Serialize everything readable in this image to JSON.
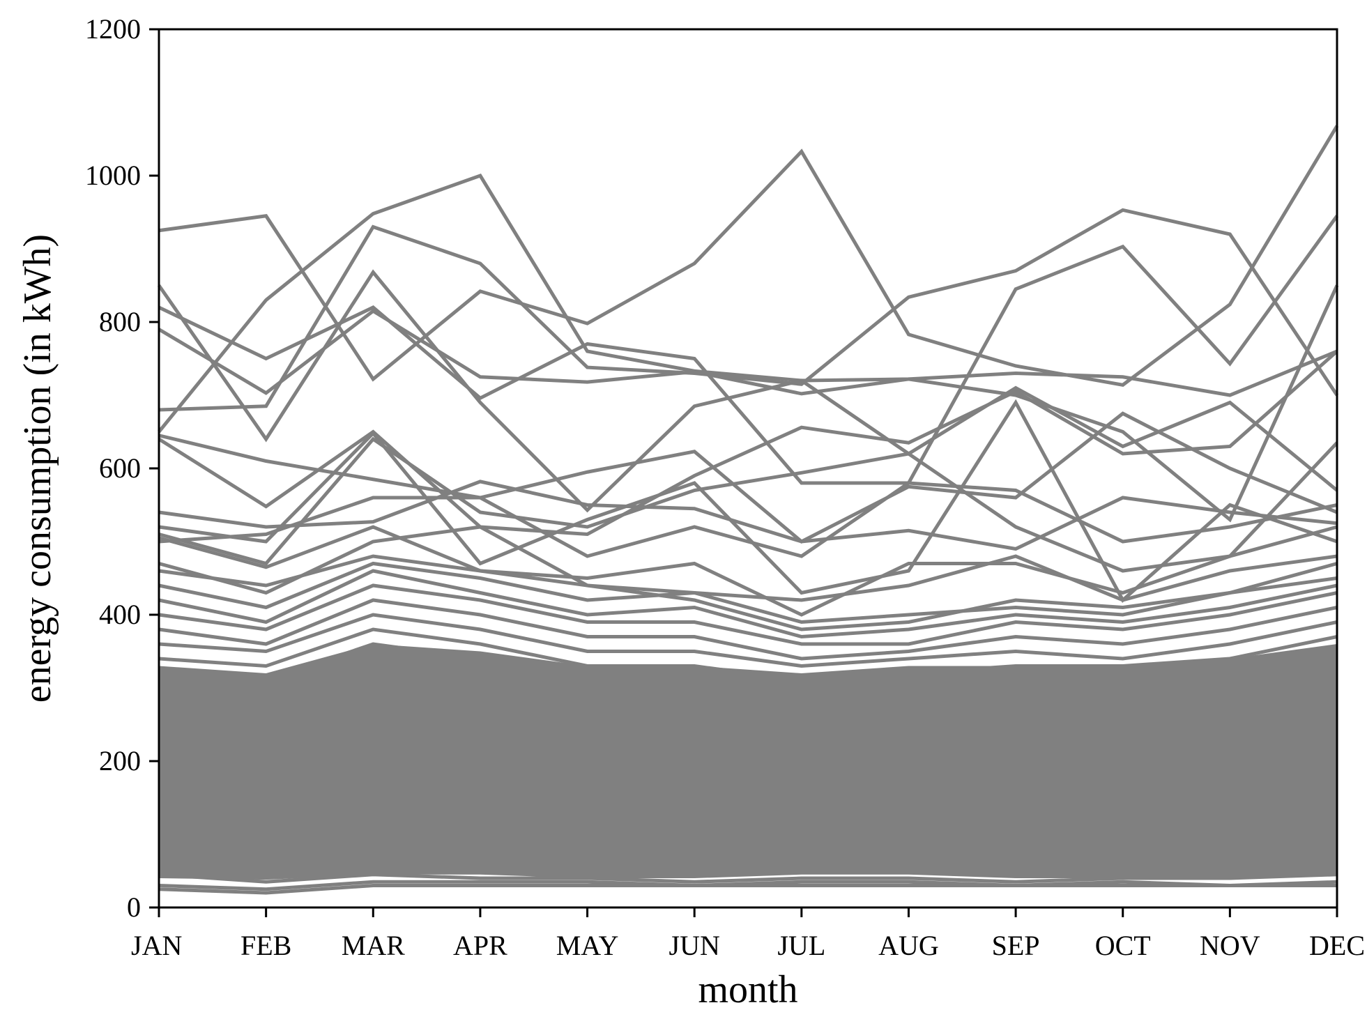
{
  "chart_data": {
    "type": "line",
    "title": "",
    "xlabel": "month",
    "ylabel": "energy consumption (in kWh)",
    "categories": [
      "JAN",
      "FEB",
      "MAR",
      "APR",
      "MAY",
      "JUN",
      "JUL",
      "AUG",
      "SEP",
      "OCT",
      "NOV",
      "DEC"
    ],
    "ylim": [
      0,
      1200
    ],
    "yticks": [
      0,
      200,
      400,
      600,
      800,
      1000,
      1200
    ],
    "grid": false,
    "legend": "none",
    "line_color": "#808080",
    "series": [
      {
        "values": [
          925,
          945,
          722,
          842,
          798,
          880,
          1033,
          783,
          740,
          714,
          824,
          1068
        ]
      },
      {
        "values": [
          650,
          830,
          948,
          1000,
          760,
          733,
          720,
          722,
          730,
          725,
          700,
          760
        ]
      },
      {
        "values": [
          680,
          685,
          930,
          880,
          738,
          730,
          715,
          834,
          870,
          953,
          920,
          700
        ]
      },
      {
        "values": [
          820,
          750,
          820,
          696,
          770,
          750,
          580,
          580,
          845,
          903,
          743,
          945
        ]
      },
      {
        "values": [
          850,
          640,
          868,
          690,
          543,
          685,
          720,
          620,
          710,
          630,
          690,
          570
        ]
      },
      {
        "values": [
          790,
          703,
          815,
          725,
          718,
          732,
          702,
          722,
          700,
          650,
          530,
          850
        ]
      },
      {
        "values": [
          645,
          610,
          585,
          560,
          595,
          623,
          500,
          575,
          560,
          675,
          600,
          540
        ]
      },
      {
        "values": [
          640,
          548,
          650,
          520,
          510,
          590,
          656,
          635,
          705,
          620,
          630,
          760
        ]
      },
      {
        "values": [
          540,
          520,
          527,
          582,
          550,
          545,
          500,
          515,
          490,
          560,
          540,
          525
        ]
      },
      {
        "values": [
          520,
          500,
          648,
          470,
          530,
          580,
          430,
          460,
          690,
          420,
          550,
          500
        ]
      },
      {
        "values": [
          510,
          470,
          640,
          540,
          520,
          570,
          594,
          620,
          520,
          460,
          480,
          635
        ]
      },
      {
        "values": [
          500,
          510,
          560,
          560,
          480,
          520,
          480,
          580,
          570,
          500,
          520,
          550
        ]
      },
      {
        "values": [
          505,
          465,
          520,
          460,
          450,
          470,
          400,
          470,
          470,
          430,
          480,
          520
        ]
      },
      {
        "values": [
          470,
          430,
          500,
          520,
          440,
          430,
          420,
          440,
          480,
          420,
          460,
          480
        ]
      },
      {
        "values": [
          460,
          440,
          480,
          460,
          440,
          420,
          380,
          390,
          420,
          410,
          430,
          470
        ]
      },
      {
        "values": [
          440,
          410,
          470,
          450,
          420,
          430,
          390,
          400,
          410,
          400,
          430,
          450
        ]
      },
      {
        "values": [
          420,
          390,
          460,
          430,
          400,
          410,
          370,
          380,
          400,
          390,
          410,
          440
        ]
      },
      {
        "values": [
          400,
          380,
          440,
          420,
          390,
          390,
          360,
          360,
          390,
          380,
          400,
          430
        ]
      },
      {
        "values": [
          380,
          360,
          420,
          400,
          370,
          370,
          340,
          350,
          370,
          360,
          380,
          410
        ]
      },
      {
        "values": [
          360,
          350,
          400,
          380,
          350,
          350,
          330,
          340,
          350,
          340,
          360,
          390
        ]
      },
      {
        "values": [
          340,
          330,
          380,
          360,
          330,
          330,
          310,
          320,
          330,
          330,
          340,
          370
        ]
      },
      {
        "values": [
          320,
          310,
          360,
          340,
          310,
          310,
          290,
          300,
          310,
          310,
          320,
          350
        ]
      },
      {
        "values": [
          300,
          290,
          340,
          320,
          290,
          290,
          270,
          280,
          290,
          290,
          300,
          330
        ]
      },
      {
        "values": [
          280,
          270,
          320,
          300,
          270,
          270,
          250,
          260,
          270,
          270,
          280,
          310
        ]
      },
      {
        "values": [
          260,
          250,
          300,
          280,
          250,
          250,
          230,
          240,
          250,
          250,
          260,
          290
        ]
      },
      {
        "values": [
          240,
          230,
          280,
          260,
          230,
          230,
          210,
          220,
          230,
          230,
          240,
          270
        ]
      },
      {
        "values": [
          220,
          210,
          260,
          240,
          210,
          210,
          190,
          200,
          210,
          210,
          220,
          250
        ]
      },
      {
        "values": [
          200,
          190,
          240,
          220,
          190,
          190,
          170,
          180,
          190,
          190,
          200,
          230
        ]
      },
      {
        "values": [
          180,
          170,
          220,
          200,
          170,
          170,
          150,
          160,
          170,
          170,
          180,
          210
        ]
      },
      {
        "values": [
          160,
          150,
          200,
          180,
          150,
          150,
          130,
          140,
          150,
          150,
          160,
          190
        ]
      },
      {
        "values": [
          140,
          130,
          180,
          160,
          130,
          130,
          110,
          120,
          130,
          130,
          140,
          170
        ]
      },
      {
        "values": [
          120,
          110,
          160,
          140,
          110,
          110,
          90,
          100,
          110,
          110,
          120,
          150
        ]
      },
      {
        "values": [
          100,
          90,
          140,
          120,
          90,
          90,
          75,
          85,
          90,
          90,
          100,
          130
        ]
      },
      {
        "values": [
          80,
          75,
          120,
          100,
          75,
          75,
          65,
          70,
          75,
          75,
          85,
          110
        ]
      },
      {
        "values": [
          60,
          55,
          80,
          70,
          55,
          55,
          50,
          55,
          55,
          55,
          60,
          80
        ]
      },
      {
        "values": [
          45,
          35,
          45,
          40,
          40,
          35,
          40,
          40,
          35,
          40,
          40,
          45
        ]
      },
      {
        "values": [
          30,
          25,
          35,
          35,
          35,
          30,
          35,
          35,
          30,
          35,
          30,
          35
        ]
      },
      {
        "values": [
          25,
          20,
          30,
          30,
          30,
          30,
          30,
          30,
          30,
          30,
          30,
          30
        ]
      }
    ],
    "band": {
      "lower": [
        40,
        38,
        45,
        45,
        40,
        40,
        45,
        45,
        40,
        40,
        40,
        45
      ],
      "upper": [
        330,
        320,
        360,
        350,
        330,
        330,
        320,
        330,
        330,
        330,
        340,
        360
      ]
    }
  }
}
